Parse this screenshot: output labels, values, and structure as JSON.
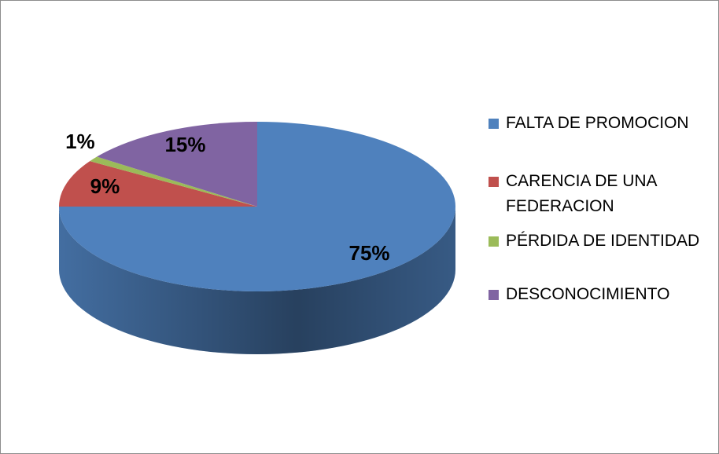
{
  "chart_data": {
    "type": "pie",
    "categories": [
      "FALTA DE PROMOCION",
      "CARENCIA DE UNA FEDERACION",
      "PÉRDIDA DE IDENTIDAD",
      "DESCONOCIMIENTO"
    ],
    "values": [
      75,
      9,
      1,
      15
    ],
    "value_labels": [
      "75%",
      "9%",
      "1%",
      "15%"
    ],
    "colors": [
      "#4f81bd",
      "#c0504d",
      "#9bbb59",
      "#8064a2"
    ]
  }
}
